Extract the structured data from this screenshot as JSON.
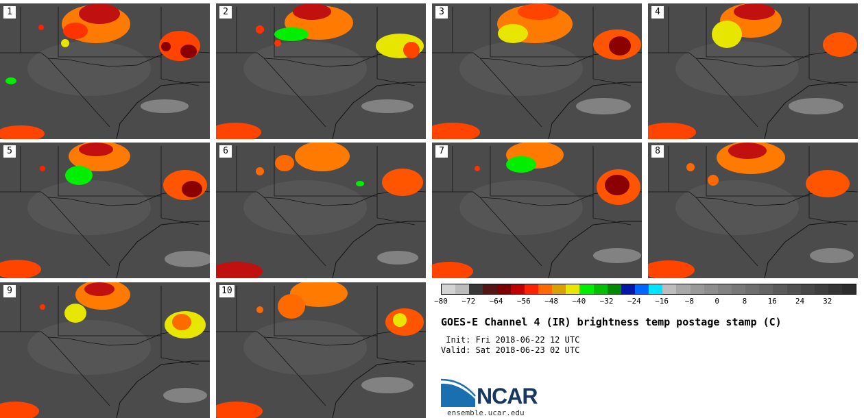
{
  "panels": [
    {
      "label": "1"
    },
    {
      "label": "2"
    },
    {
      "label": "3"
    },
    {
      "label": "4"
    },
    {
      "label": "5"
    },
    {
      "label": "6"
    },
    {
      "label": "7"
    },
    {
      "label": "8"
    },
    {
      "label": "9"
    },
    {
      "label": "10"
    }
  ],
  "colorbar": {
    "colors": [
      "#d3d3d3",
      "#bcbcbc",
      "#383838",
      "#551515",
      "#7b0000",
      "#c00000",
      "#ff2200",
      "#ff6a00",
      "#d8a000",
      "#e6e600",
      "#00ee00",
      "#00c000",
      "#008a00",
      "#0018a8",
      "#0066ff",
      "#00e5ff",
      "#bdbdbd",
      "#a8a8a8",
      "#999999",
      "#8d8d8d",
      "#828282",
      "#787878",
      "#6e6e6e",
      "#646464",
      "#5a5a5a",
      "#505050",
      "#474747",
      "#3e3e3e",
      "#353535",
      "#2c2c2c"
    ],
    "ticks": [
      "−80",
      "−72",
      "−64",
      "−56",
      "−48",
      "−40",
      "−32",
      "−24",
      "−16",
      "−8",
      "0",
      "8",
      "16",
      "24",
      "32"
    ]
  },
  "title": "GOES-E Channel 4 (IR) brightness temp postage stamp (C)",
  "init_line": " Init: Fri 2018-06-22 12 UTC",
  "valid_line": "Valid: Sat 2018-06-23 02 UTC",
  "logo": {
    "name": "NCAR",
    "url": "ensemble.ucar.edu"
  }
}
